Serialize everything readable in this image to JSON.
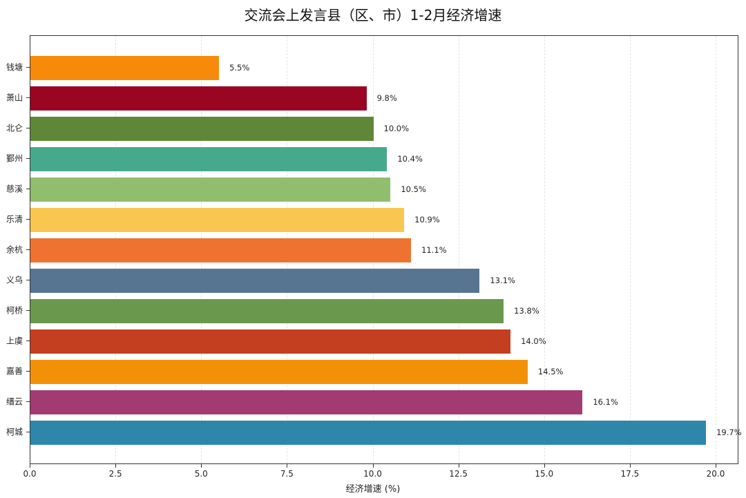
{
  "chart_data": {
    "type": "bar",
    "orientation": "horizontal",
    "title": "交流会上发言县（区、市）1-2月经济增速",
    "xlabel": "经济增速 (%)",
    "ylabel": "",
    "xlim": [
      0,
      20.65
    ],
    "x_ticks": [
      "0.0",
      "2.5",
      "5.0",
      "7.5",
      "10.0",
      "12.5",
      "15.0",
      "17.5",
      "20.0"
    ],
    "grid": "vertical dashed",
    "categories": [
      "钱塘",
      "萧山",
      "北仑",
      "鄞州",
      "慈溪",
      "乐清",
      "余杭",
      "义乌",
      "柯桥",
      "上虞",
      "嘉善",
      "缙云",
      "柯城"
    ],
    "values": [
      5.5,
      9.8,
      10.0,
      10.4,
      10.5,
      10.9,
      11.1,
      13.1,
      13.8,
      14.0,
      14.5,
      16.1,
      19.7
    ],
    "labels": [
      "5.5%",
      "9.8%",
      "10.0%",
      "10.4%",
      "10.5%",
      "10.9%",
      "11.1%",
      "13.1%",
      "13.8%",
      "14.0%",
      "14.5%",
      "16.1%",
      "19.7%"
    ],
    "colors": [
      "#F88A0A",
      "#9A0522",
      "#5E8838",
      "#45AA8B",
      "#90BE6D",
      "#F9C74F",
      "#F07230",
      "#577590",
      "#6A994E",
      "#C43F1F",
      "#F29108",
      "#A23B72",
      "#2E86AB"
    ]
  }
}
